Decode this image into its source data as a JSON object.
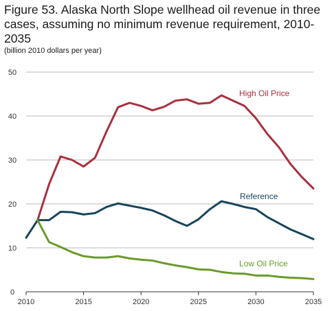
{
  "title": "Figure 53. Alaska North Slope wellhead oil revenue in three cases, assuming no minimum revenue requirement, 2010-2035",
  "subtitle": "(billion 2010 dollars per year)",
  "chart_data": {
    "type": "line",
    "title": "Figure 53. Alaska North Slope wellhead oil revenue in three cases, assuming no minimum revenue requirement, 2010-2035",
    "ylabel": "(billion 2010 dollars per year)",
    "xlabel": "",
    "xlim": [
      2010,
      2035
    ],
    "ylim": [
      0,
      50
    ],
    "x_ticks": [
      "2010",
      "2015",
      "2020",
      "2025",
      "2030",
      "2035"
    ],
    "y_ticks": [
      "0",
      "10",
      "20",
      "30",
      "40",
      "50"
    ],
    "grid": true,
    "x": [
      2010,
      2011,
      2012,
      2013,
      2014,
      2015,
      2016,
      2017,
      2018,
      2019,
      2020,
      2021,
      2022,
      2023,
      2024,
      2025,
      2026,
      2027,
      2028,
      2029,
      2030,
      2031,
      2032,
      2033,
      2034,
      2035
    ],
    "series": [
      {
        "name": "High Oil Price",
        "color": "#a8313f",
        "values": [
          null,
          16.3,
          24.5,
          30.8,
          30.0,
          28.5,
          30.5,
          36.5,
          42.0,
          43.0,
          42.3,
          41.3,
          42.1,
          43.5,
          43.8,
          42.8,
          43.0,
          44.7,
          43.5,
          42.3,
          39.5,
          35.9,
          32.9,
          29.1,
          26.1,
          23.5
        ]
      },
      {
        "name": "Reference",
        "color": "#15455b",
        "values": [
          12.3,
          16.3,
          16.3,
          18.2,
          18.1,
          17.6,
          17.9,
          19.3,
          20.1,
          19.6,
          19.1,
          18.5,
          17.4,
          16.1,
          15.0,
          16.5,
          18.8,
          20.6,
          20.0,
          19.3,
          18.8,
          17.0,
          15.6,
          14.2,
          13.1,
          12.0
        ]
      },
      {
        "name": "Low Oil Price",
        "color": "#6a9a2a",
        "values": [
          null,
          16.3,
          11.3,
          10.2,
          9.0,
          8.1,
          7.8,
          7.8,
          8.1,
          7.6,
          7.3,
          7.1,
          6.5,
          6.0,
          5.6,
          5.1,
          5.0,
          4.5,
          4.2,
          4.1,
          3.7,
          3.7,
          3.4,
          3.2,
          3.1,
          2.9
        ]
      }
    ]
  }
}
